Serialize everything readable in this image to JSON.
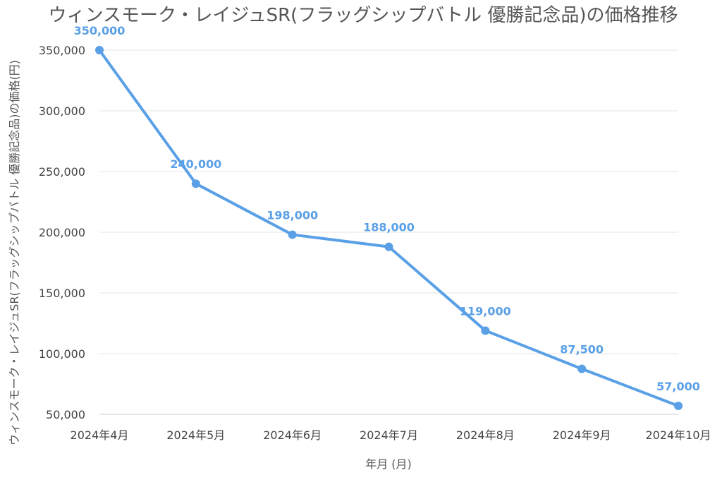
{
  "chart_data": {
    "type": "line",
    "title": "ウィンスモーク・レイジュSR(フラッグシップバトル 優勝記念品)の価格推移",
    "xlabel": "年月 (月)",
    "ylabel": "ウィンスモーク・レイジュSR(フラッグシップバトル 優勝記念品)の価格(円)",
    "categories": [
      "2024年4月",
      "2024年5月",
      "2024年6月",
      "2024年7月",
      "2024年8月",
      "2024年9月",
      "2024年10月"
    ],
    "series": [
      {
        "values": [
          350000,
          240000,
          198000,
          188000,
          119000,
          87500,
          57000
        ],
        "data_labels": [
          "350,000",
          "240,000",
          "198,000",
          "188,000",
          "119,000",
          "87,500",
          "57,000"
        ]
      }
    ],
    "ylim": [
      50000,
      350000
    ],
    "yticks": [
      50000,
      100000,
      150000,
      200000,
      250000,
      300000,
      350000
    ],
    "ytick_labels": [
      "50,000",
      "100,000",
      "150,000",
      "200,000",
      "250,000",
      "300,000",
      "350,000"
    ],
    "grid": true,
    "legend": "none",
    "colors": {
      "line": "#5aa0e6",
      "grid": "#e6e6e6",
      "axis": "#cccccc"
    }
  }
}
